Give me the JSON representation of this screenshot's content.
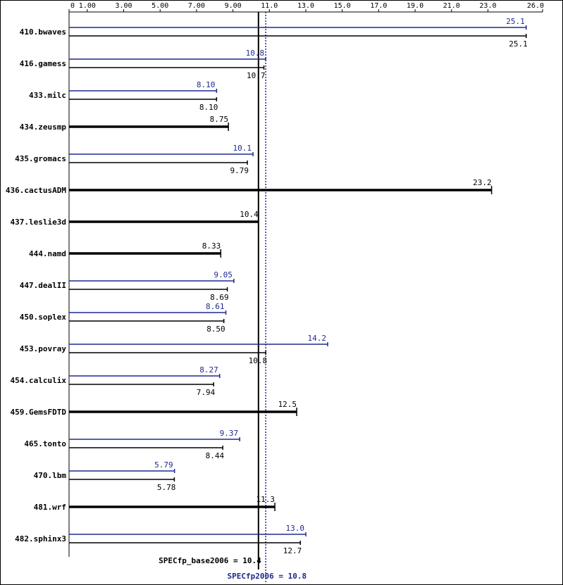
{
  "colors": {
    "peak": "#1f2a8f",
    "base": "#000000",
    "axis": "#000000"
  },
  "chart_data": {
    "type": "bar",
    "title": "",
    "xlim": [
      0,
      26.0
    ],
    "ticks": [
      {
        "value": 0,
        "label": "0"
      },
      {
        "value": 1.0,
        "label": "1.00"
      },
      {
        "value": 3.0,
        "label": "3.00"
      },
      {
        "value": 5.0,
        "label": "5.00"
      },
      {
        "value": 7.0,
        "label": "7.00"
      },
      {
        "value": 9.0,
        "label": "9.00"
      },
      {
        "value": 11.0,
        "label": "11.0"
      },
      {
        "value": 13.0,
        "label": "13.0"
      },
      {
        "value": 15.0,
        "label": "15.0"
      },
      {
        "value": 17.0,
        "label": "17.0"
      },
      {
        "value": 19.0,
        "label": "19.0"
      },
      {
        "value": 21.0,
        "label": "21.0"
      },
      {
        "value": 23.0,
        "label": "23.0"
      },
      {
        "value": 26.0,
        "label": "26.0"
      }
    ],
    "benchmarks": [
      {
        "name": "410.bwaves",
        "peak": 25.1,
        "peak_label": "25.1",
        "base": 25.1,
        "base_label": "25.1"
      },
      {
        "name": "416.gamess",
        "peak": 10.8,
        "peak_label": "10.8",
        "base": 10.7,
        "base_label": "10.7"
      },
      {
        "name": "433.milc",
        "peak": 8.1,
        "peak_label": "8.10",
        "base": 8.1,
        "base_label": "8.10"
      },
      {
        "name": "434.zeusmp",
        "peak": null,
        "peak_label": "",
        "base": 8.75,
        "base_label": "8.75"
      },
      {
        "name": "435.gromacs",
        "peak": 10.1,
        "peak_label": "10.1",
        "base": 9.79,
        "base_label": "9.79"
      },
      {
        "name": "436.cactusADM",
        "peak": null,
        "peak_label": "",
        "base": 23.2,
        "base_label": "23.2"
      },
      {
        "name": "437.leslie3d",
        "peak": null,
        "peak_label": "",
        "base": 10.4,
        "base_label": "10.4"
      },
      {
        "name": "444.namd",
        "peak": null,
        "peak_label": "",
        "base": 8.33,
        "base_label": "8.33"
      },
      {
        "name": "447.dealII",
        "peak": 9.05,
        "peak_label": "9.05",
        "base": 8.69,
        "base_label": "8.69"
      },
      {
        "name": "450.soplex",
        "peak": 8.61,
        "peak_label": "8.61",
        "base": 8.5,
        "base_label": "8.50"
      },
      {
        "name": "453.povray",
        "peak": 14.2,
        "peak_label": "14.2",
        "base": 10.8,
        "base_label": "10.8"
      },
      {
        "name": "454.calculix",
        "peak": 8.27,
        "peak_label": "8.27",
        "base": 7.94,
        "base_label": "7.94"
      },
      {
        "name": "459.GemsFDTD",
        "peak": null,
        "peak_label": "",
        "base": 12.5,
        "base_label": "12.5"
      },
      {
        "name": "465.tonto",
        "peak": 9.37,
        "peak_label": "9.37",
        "base": 8.44,
        "base_label": "8.44"
      },
      {
        "name": "470.lbm",
        "peak": 5.79,
        "peak_label": "5.79",
        "base": 5.78,
        "base_label": "5.78"
      },
      {
        "name": "481.wrf",
        "peak": null,
        "peak_label": "",
        "base": 11.3,
        "base_label": "11.3"
      },
      {
        "name": "482.sphinx3",
        "peak": 13.0,
        "peak_label": "13.0",
        "base": 12.7,
        "base_label": "12.7"
      }
    ],
    "summary": {
      "base_value": 10.4,
      "base_label": "SPECfp_base2006 = 10.4",
      "peak_value": 10.8,
      "peak_label": "SPECfp2006 = 10.8"
    }
  }
}
